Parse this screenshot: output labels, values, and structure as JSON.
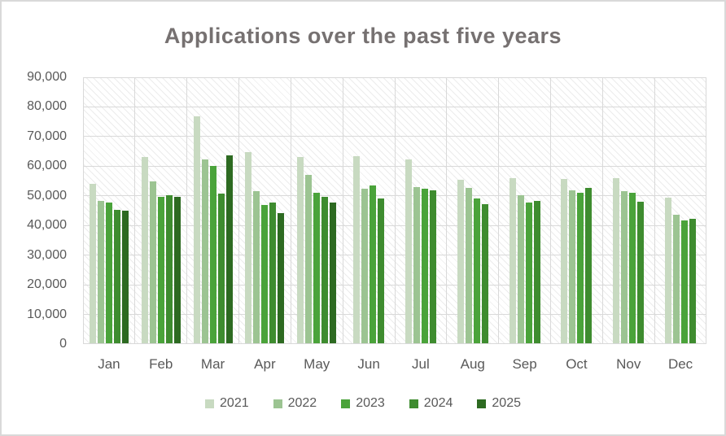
{
  "chart_data": {
    "type": "bar",
    "title": "Applications over the past five years",
    "categories": [
      "Jan",
      "Feb",
      "Mar",
      "Apr",
      "May",
      "Jun",
      "Jul",
      "Aug",
      "Sep",
      "Oct",
      "Nov",
      "Dec"
    ],
    "series": [
      {
        "name": "2021",
        "color": "#c8dac1",
        "values": [
          54000,
          63100,
          76800,
          64700,
          63000,
          63400,
          62300,
          55300,
          55900,
          55600,
          56000,
          49300
        ]
      },
      {
        "name": "2022",
        "color": "#9cc492",
        "values": [
          48400,
          54900,
          62200,
          51500,
          57000,
          52400,
          53000,
          52700,
          50100,
          52000,
          51500,
          43700
        ]
      },
      {
        "name": "2023",
        "color": "#4aa33a",
        "values": [
          47700,
          49700,
          60000,
          46900,
          51000,
          53600,
          52400,
          49100,
          47700,
          51100,
          51000,
          41700
        ]
      },
      {
        "name": "2024",
        "color": "#3e8c2f",
        "values": [
          45400,
          50300,
          50700,
          47700,
          49800,
          49100,
          52000,
          47300,
          48300,
          52700,
          48000,
          42300
        ]
      },
      {
        "name": "2025",
        "color": "#2d6a21",
        "values": [
          45100,
          49600,
          63600,
          44300,
          47800,
          null,
          null,
          null,
          null,
          null,
          null,
          null
        ]
      }
    ],
    "ylim": [
      0,
      90000
    ],
    "ytick_step": 10000,
    "ytick_labels": [
      "0",
      "10,000",
      "20,000",
      "30,000",
      "40,000",
      "50,000",
      "60,000",
      "70,000",
      "80,000",
      "90,000"
    ],
    "xlabel": "",
    "ylabel": "",
    "grid": true,
    "plot_hatch": true,
    "legend_position": "bottom",
    "colors": {
      "background": "#ffffff",
      "frame_border": "#d9d9d9",
      "gridline": "#d9d9d9",
      "plot_hatch": "#ececec",
      "title_text": "#767171",
      "axis_text": "#595959"
    }
  }
}
